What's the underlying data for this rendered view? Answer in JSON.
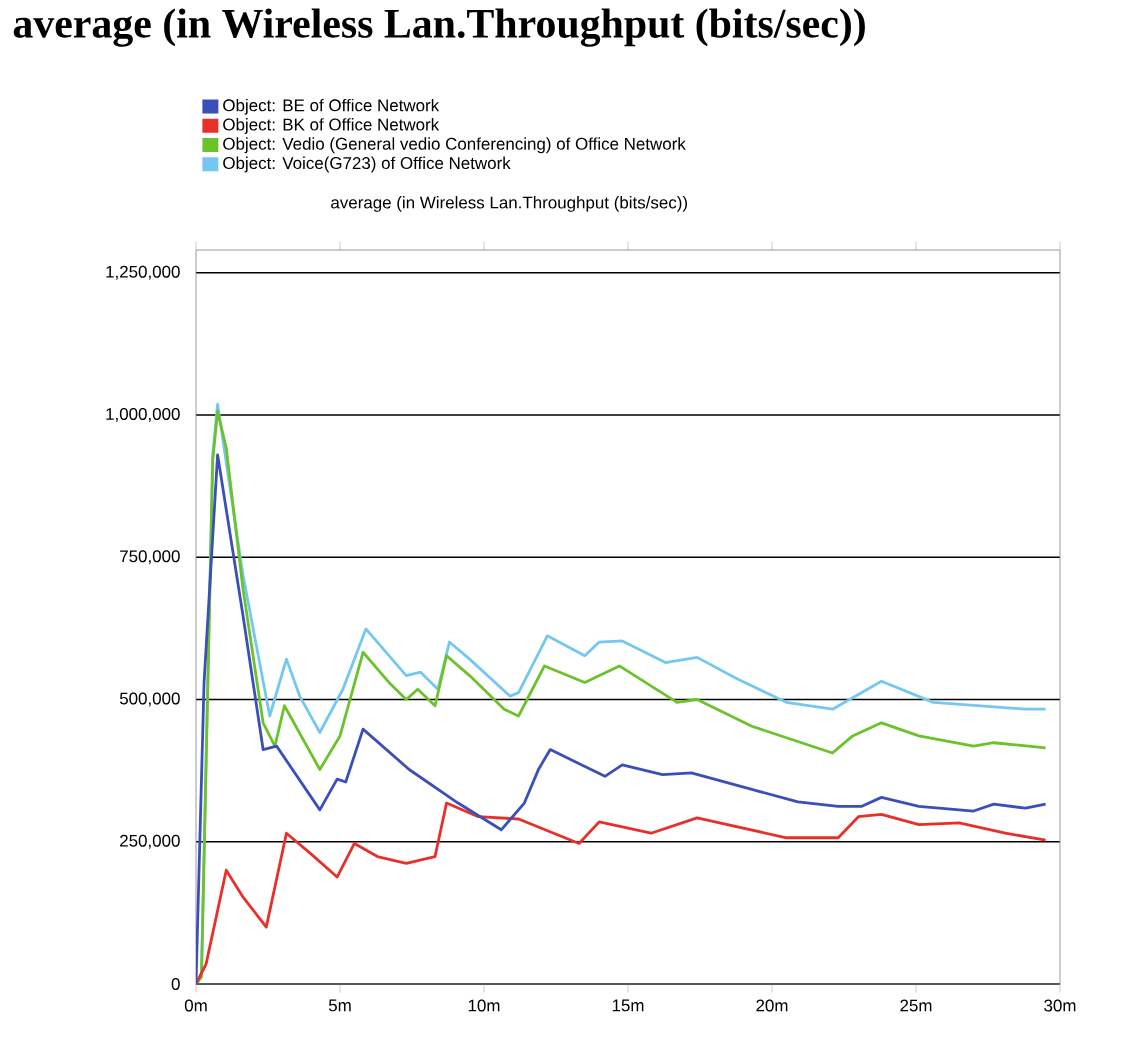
{
  "chart_data": {
    "type": "line",
    "title": "average (in Wireless Lan.Throughput (bits/sec))",
    "subtitle": "average (in Wireless Lan.Throughput (bits/sec))",
    "xlim": [
      0,
      30
    ],
    "ylim": [
      0,
      1290000
    ],
    "xticks": [
      {
        "value": 0,
        "label": "0m"
      },
      {
        "value": 5,
        "label": "5m"
      },
      {
        "value": 10,
        "label": "10m"
      },
      {
        "value": 15,
        "label": "15m"
      },
      {
        "value": 20,
        "label": "20m"
      },
      {
        "value": 25,
        "label": "25m"
      },
      {
        "value": 30,
        "label": "30m"
      }
    ],
    "yticks": [
      0,
      {
        "value": 250000,
        "label": "250,000"
      },
      {
        "value": 500000,
        "label": "500,000"
      },
      {
        "value": 750000,
        "label": "750,000"
      },
      {
        "value": 1000000,
        "label": "1,000,000"
      },
      {
        "value": 1250000,
        "label": "1,250,000"
      }
    ],
    "grid": "y",
    "legend": "top left",
    "marker": "none",
    "line_style": "solid",
    "series": [
      {
        "name": "Object: BE of Office Network",
        "color": "#3b4fb8",
        "x": [
          0,
          0.28,
          0.75,
          1.63,
          2.33,
          2.8,
          4.3,
          4.9,
          5.2,
          5.8,
          7.4,
          9.1,
          10.6,
          11.4,
          11.9,
          12.3,
          14.2,
          14.8,
          16.2,
          17.2,
          19.3,
          20.9,
          22.3,
          23.1,
          23.8,
          25.1,
          27.0,
          27.7,
          28.8,
          29.5
        ],
        "values": [
          0,
          530000,
          930000,
          648000,
          412000,
          418000,
          306000,
          360000,
          355000,
          448000,
          377000,
          318000,
          271000,
          318000,
          378000,
          412000,
          365000,
          385000,
          368000,
          371000,
          342000,
          320000,
          312000,
          312000,
          328000,
          312000,
          304000,
          316000,
          309000,
          316000
        ]
      },
      {
        "name": "Object: BK of Office Network",
        "color": "#e8302a",
        "x": [
          0,
          0.35,
          1.05,
          1.63,
          2.44,
          3.14,
          3.96,
          4.9,
          5.5,
          6.3,
          7.3,
          8.3,
          8.7,
          9.8,
          11.2,
          13.3,
          14.0,
          15.8,
          17.4,
          20.5,
          22.3,
          23.0,
          23.8,
          25.1,
          26.5,
          28.1,
          29.5
        ],
        "values": [
          0,
          35000,
          200000,
          153000,
          100000,
          265000,
          230000,
          188000,
          247000,
          224000,
          212000,
          224000,
          318000,
          294000,
          290000,
          247000,
          285000,
          265000,
          292000,
          257000,
          257000,
          294000,
          298000,
          280000,
          283000,
          265000,
          253000
        ]
      },
      {
        "name": "Object: Vedio (General vedio Conferencing) of Office Network",
        "color": "#6cc22a",
        "x": [
          0,
          0.19,
          0.58,
          0.75,
          1.05,
          1.63,
          2.33,
          2.74,
          3.07,
          4.3,
          5.0,
          5.8,
          6.7,
          7.3,
          7.7,
          8.3,
          8.7,
          9.5,
          10.7,
          11.2,
          12.1,
          13.5,
          14.7,
          16.7,
          17.4,
          19.3,
          22.1,
          22.8,
          23.8,
          25.1,
          27.0,
          27.7,
          29.5
        ],
        "values": [
          0,
          12000,
          919000,
          1007000,
          942000,
          695000,
          459000,
          418000,
          489000,
          377000,
          436000,
          583000,
          530000,
          500000,
          518000,
          489000,
          577000,
          542000,
          483000,
          471000,
          559000,
          530000,
          559000,
          495000,
          500000,
          453000,
          406000,
          436000,
          459000,
          436000,
          418000,
          424000,
          415000
        ]
      },
      {
        "name": "Object: Voice(G723) of Office Network",
        "color": "#74c8f0",
        "x": [
          0,
          0.19,
          0.58,
          0.75,
          1.63,
          2.56,
          3.14,
          3.6,
          4.3,
          5.1,
          5.9,
          6.7,
          7.3,
          7.8,
          8.4,
          8.8,
          9.5,
          10.9,
          11.2,
          12.2,
          13.5,
          14.0,
          14.8,
          16.3,
          17.4,
          18.8,
          20.5,
          22.1,
          23.8,
          25.6,
          27.2,
          28.8,
          29.5
        ],
        "values": [
          0,
          20000,
          930000,
          1019000,
          719000,
          471000,
          571000,
          506000,
          442000,
          518000,
          624000,
          577000,
          542000,
          548000,
          518000,
          601000,
          571000,
          506000,
          512000,
          612000,
          577000,
          601000,
          603000,
          565000,
          574000,
          536000,
          495000,
          483000,
          532000,
          495000,
          489000,
          483000,
          483000
        ]
      }
    ]
  }
}
